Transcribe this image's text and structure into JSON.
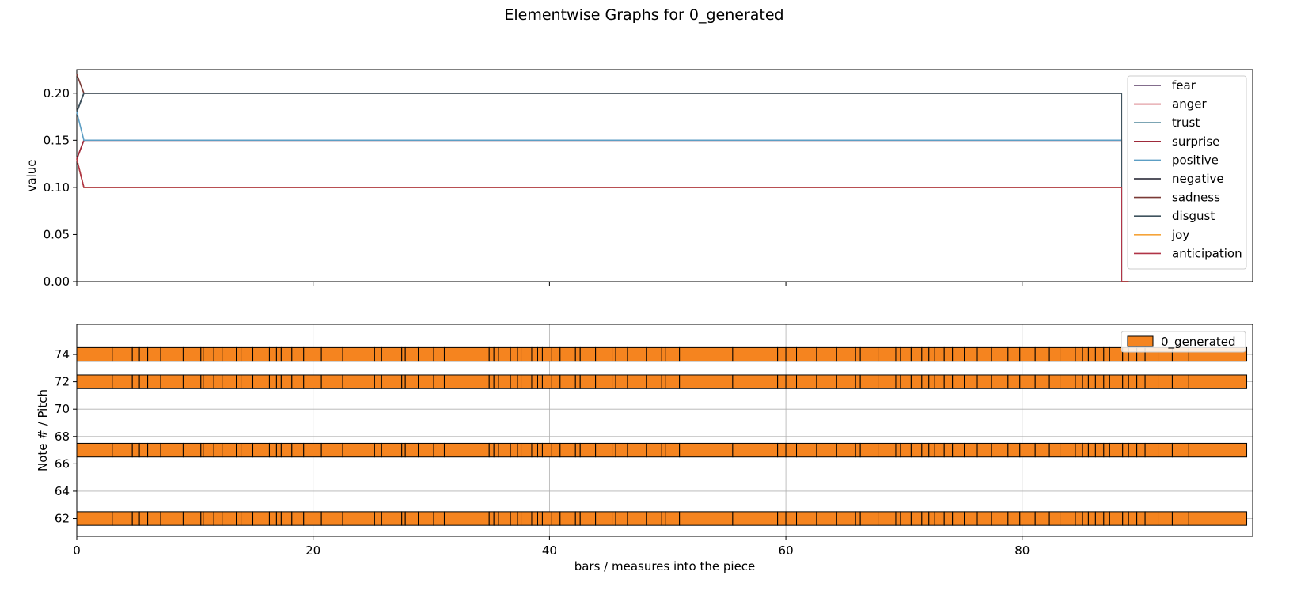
{
  "figure": {
    "title": "Elementwise Graphs for 0_generated",
    "xlabel": "bars / measures into the piece"
  },
  "chart_data": [
    {
      "type": "line",
      "ylabel": "value",
      "xlim": [
        0,
        99.5
      ],
      "ylim": [
        0,
        0.225
      ],
      "yticks": [
        0.0,
        0.05,
        0.1,
        0.15,
        0.2
      ],
      "ytick_labels": [
        "0.00",
        "0.05",
        "0.10",
        "0.15",
        "0.20"
      ],
      "xticks": [
        0,
        20,
        40,
        60,
        80
      ],
      "show_xtick_labels": false,
      "grid": false,
      "legend_position": "top-right",
      "series": [
        {
          "name": "fear",
          "color": "#5a3d66",
          "x": [
            0,
            0.6,
            88.4,
            88.4,
            89
          ],
          "y": [
            0.13,
            0.1,
            0.1,
            0,
            0
          ]
        },
        {
          "name": "anger",
          "color": "#c8404c",
          "x": [
            0,
            0.6,
            88.4,
            88.4,
            89
          ],
          "y": [
            0.13,
            0.15,
            0.15,
            0,
            0
          ]
        },
        {
          "name": "trust",
          "color": "#2f6f87",
          "x": [
            0,
            0.6,
            88.4,
            88.4,
            89
          ],
          "y": [
            0.18,
            0.2,
            0.2,
            0,
            0
          ]
        },
        {
          "name": "surprise",
          "color": "#9e2a3a",
          "x": [
            0,
            0.6,
            88.4,
            88.4,
            89
          ],
          "y": [
            0.13,
            0.15,
            0.15,
            0,
            0
          ]
        },
        {
          "name": "positive",
          "color": "#5c9ec4",
          "x": [
            0,
            0.6,
            88.4,
            88.4,
            89
          ],
          "y": [
            0.18,
            0.15,
            0.15,
            0,
            0
          ]
        },
        {
          "name": "negative",
          "color": "#1c1c2a",
          "x": [
            0,
            0.6,
            88.4,
            88.4,
            89
          ],
          "y": [
            0.18,
            0.2,
            0.2,
            0,
            0
          ]
        },
        {
          "name": "sadness",
          "color": "#7a3a36",
          "x": [
            0,
            0.6,
            88.4,
            88.4,
            89
          ],
          "y": [
            0.22,
            0.2,
            0.2,
            0,
            0
          ]
        },
        {
          "name": "disgust",
          "color": "#3f535e",
          "x": [
            0,
            0.6,
            88.4,
            88.4,
            89
          ],
          "y": [
            0.18,
            0.2,
            0.2,
            0,
            0
          ]
        },
        {
          "name": "joy",
          "color": "#f5a43a",
          "x": [
            0,
            0.6,
            88.4,
            88.4,
            89
          ],
          "y": [
            0.13,
            0.1,
            0.1,
            0,
            0
          ]
        },
        {
          "name": "anticipation",
          "color": "#b03447",
          "x": [
            0,
            0.6,
            88.4,
            88.4,
            89
          ],
          "y": [
            0.13,
            0.1,
            0.1,
            0,
            0
          ]
        }
      ]
    },
    {
      "type": "bar",
      "orientation": "horizontal-note-bars",
      "ylabel": "Note # / Pitch",
      "xlim": [
        0,
        99.5
      ],
      "ylim": [
        60.7,
        76.2
      ],
      "yticks": [
        62,
        64,
        66,
        68,
        70,
        72,
        74
      ],
      "xticks": [
        0,
        20,
        40,
        60,
        80
      ],
      "grid": true,
      "legend_position": "top-right",
      "bar_color": "#f5841f",
      "edge_color": "#000000",
      "series": [
        {
          "name": "0_generated",
          "pitches": [
            62,
            67,
            72,
            74
          ],
          "note_height": 1,
          "note_boundaries": [
            0,
            3,
            4.7,
            5.3,
            6,
            7.1,
            9,
            10.5,
            10.7,
            11.6,
            12.3,
            13.5,
            13.9,
            14.9,
            16.3,
            16.9,
            17.3,
            18.2,
            19.2,
            20.7,
            22.5,
            25.2,
            25.8,
            27.5,
            27.8,
            28.9,
            30.2,
            31.1,
            34.9,
            35.3,
            35.7,
            36.7,
            37.3,
            37.6,
            38.5,
            39,
            39.4,
            40.2,
            40.9,
            42.2,
            42.6,
            43.9,
            45.3,
            45.6,
            46.6,
            48.2,
            49.5,
            49.8,
            51,
            55.5,
            59.3,
            60,
            60.9,
            62.6,
            64.3,
            65.9,
            66.3,
            67.8,
            69.3,
            69.7,
            70.6,
            71.5,
            72.1,
            72.6,
            73.4,
            74.1,
            75.1,
            76.2,
            77.4,
            78.8,
            79.8,
            81.1,
            82.3,
            83.2,
            84.5,
            85.1,
            85.6,
            86.2,
            86.9,
            87.4,
            88.5,
            89,
            89.7,
            90.4,
            91.5,
            92.7,
            94.1,
            99
          ]
        }
      ]
    }
  ]
}
